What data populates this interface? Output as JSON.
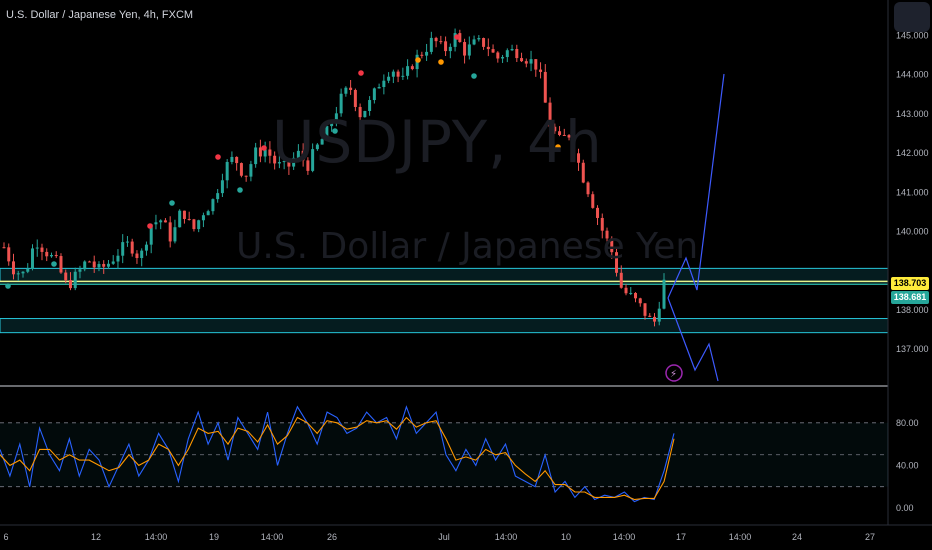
{
  "header": {
    "title": "U.S. Dollar / Japanese Yen, 4h, FXCM"
  },
  "watermark": {
    "symbol": "USDJPY, 4h",
    "name": "U.S. Dollar / Japanese Yen"
  },
  "price_labels": {
    "upper": "138.703",
    "lower": "138.681",
    "upper_color": "#ffeb3b",
    "lower_color": "#26a69a"
  },
  "colors": {
    "up": "#26a69a",
    "down": "#ef5350",
    "zone": "#26c6da",
    "projection": "#3d5afe",
    "stoch_k": "#2962ff",
    "stoch_d": "#ff9800",
    "marker_red": "#f23645",
    "marker_orange": "#ff9800",
    "marker_teal": "#26a69a"
  },
  "icons": {
    "alert": "lightning-icon"
  },
  "chart_data": [
    {
      "type": "candlestick",
      "title": "U.S. Dollar / Japanese Yen, 4h, FXCM",
      "ylim": [
        136.6,
        145.6
      ],
      "y_ticks": [
        "145.000",
        "144.000",
        "143.000",
        "142.000",
        "141.000",
        "140.000",
        "138.000",
        "137.000"
      ],
      "x_ticks": [
        "6",
        "12",
        "14:00",
        "19",
        "14:00",
        "26",
        "Jul",
        "14:00",
        "10",
        "14:00",
        "17",
        "14:00",
        "24",
        "27"
      ],
      "close_path": [
        139.6,
        139.0,
        138.9,
        139.8,
        139.5,
        139.2,
        138.6,
        138.9,
        139.3,
        139.0,
        139.2,
        139.5,
        139.7,
        139.3,
        140.2,
        140.3,
        139.8,
        140.6,
        140.0,
        140.5,
        140.8,
        141.6,
        141.9,
        141.4,
        142.0,
        142.1,
        141.7,
        141.6,
        142.0,
        141.7,
        142.2,
        142.6,
        143.3,
        143.7,
        143.0,
        143.3,
        143.9,
        144.2,
        143.8,
        144.3,
        144.6,
        144.9,
        144.6,
        145.0,
        144.6,
        144.8,
        144.8,
        144.4,
        144.6,
        144.6,
        144.4,
        144.2,
        142.8,
        142.3,
        142.5,
        141.6,
        140.9,
        140.1,
        139.5,
        138.5,
        138.3,
        138.0,
        137.6,
        138.7
      ],
      "support_zones": [
        [
          138.72,
          139.06
        ],
        [
          137.42,
          137.78
        ]
      ],
      "horizontal_lines": [
        138.703,
        138.681
      ],
      "projection": [
        [
          138.7,
          139.6
        ],
        [
          139.6,
          138.9
        ],
        [
          138.9,
          144.3
        ]
      ],
      "projection_alt": [
        [
          138.7,
          137.6
        ],
        [
          137.6,
          137.2
        ]
      ]
    },
    {
      "type": "line",
      "ylim": [
        0,
        100
      ],
      "y_ticks": [
        "80.00",
        "40.00",
        "0.00"
      ],
      "levels": [
        80,
        50,
        20
      ],
      "series": [
        {
          "values": [
            55,
            30,
            60,
            20,
            75,
            50,
            35,
            65,
            30,
            55,
            45,
            20,
            40,
            60,
            30,
            45,
            70,
            55,
            25,
            65,
            90,
            60,
            80,
            45,
            85,
            70,
            55,
            90,
            40,
            70,
            95,
            80,
            60,
            90,
            85,
            70,
            75,
            90,
            80,
            85,
            65,
            95,
            70,
            80,
            90,
            50,
            35,
            55,
            40,
            65,
            45,
            60,
            30,
            25,
            20,
            50,
            15,
            25,
            10,
            20,
            8,
            12,
            10,
            15,
            6,
            10,
            8,
            35,
            70
          ]
        },
        {
          "values": [
            50,
            40,
            45,
            35,
            55,
            55,
            45,
            50,
            45,
            45,
            40,
            35,
            38,
            50,
            40,
            45,
            60,
            55,
            40,
            55,
            75,
            70,
            72,
            60,
            75,
            72,
            62,
            78,
            60,
            68,
            85,
            80,
            70,
            82,
            80,
            74,
            76,
            82,
            80,
            82,
            74,
            85,
            76,
            80,
            82,
            65,
            45,
            48,
            45,
            55,
            50,
            52,
            40,
            32,
            25,
            35,
            22,
            22,
            15,
            15,
            10,
            10,
            10,
            12,
            8,
            9,
            9,
            25,
            65
          ]
        }
      ]
    }
  ]
}
